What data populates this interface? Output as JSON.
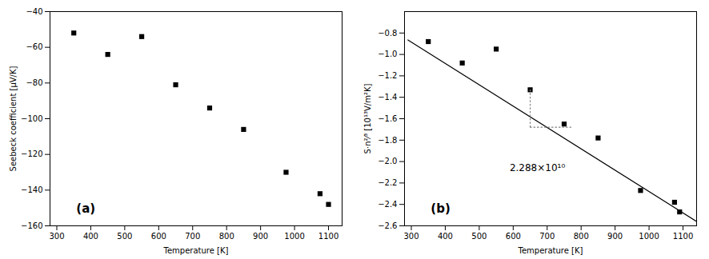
{
  "chart_data": [
    {
      "type": "scatter",
      "xlabel": "Temperature [K]",
      "ylabel": "Seebeck coefficient [μV/K]",
      "xlim": [
        280,
        1140
      ],
      "ylim": [
        -160,
        -40
      ],
      "xticks": [
        300,
        400,
        500,
        600,
        700,
        800,
        900,
        1000,
        1100
      ],
      "yticks": [
        -160,
        -140,
        -120,
        -100,
        -80,
        -60,
        -40
      ],
      "grid": false,
      "annotations": [
        "(a)"
      ],
      "series": [
        {
          "type": "scatter",
          "color": "black",
          "marker": "square",
          "x": [
            350,
            450,
            550,
            650,
            750,
            850,
            975,
            1075,
            1100
          ],
          "values": [
            -52,
            -64,
            -54,
            -81,
            -94,
            -106,
            -130,
            -142,
            -148
          ]
        }
      ]
    },
    {
      "type": "scatter",
      "xlabel": "Temperature [K]",
      "ylabel": "S·n²⁄³ [10¹³V/m²K]",
      "xlim": [
        280,
        1140
      ],
      "ylim": [
        -2.6,
        -0.6
      ],
      "xticks": [
        300,
        400,
        500,
        600,
        700,
        800,
        900,
        1000,
        1100
      ],
      "yticks": [
        {
          "value": -2.6,
          "label": "−2.6"
        },
        {
          "value": -2.4,
          "label": "−2.4"
        },
        {
          "value": -2.2,
          "label": "−2.2"
        },
        {
          "value": -2.0,
          "label": "−2.0"
        },
        {
          "value": -1.8,
          "label": "−1.8"
        },
        {
          "value": -1.6,
          "label": "−1.6"
        },
        {
          "value": -1.4,
          "label": "−1.4"
        },
        {
          "value": -1.2,
          "label": "−1.2"
        },
        {
          "value": -1.0,
          "label": "−1.0"
        },
        {
          "value": -0.8,
          "label": "−0.8"
        }
      ],
      "grid": false,
      "annotations": [
        "(b)",
        "2.288×10¹⁰"
      ],
      "series": [
        {
          "type": "scatter",
          "color": "black",
          "marker": "square",
          "x": [
            350,
            450,
            550,
            650,
            750,
            850,
            975,
            1075,
            1090
          ],
          "values": [
            -0.88,
            -1.08,
            -0.95,
            -1.33,
            -1.65,
            -1.78,
            -2.27,
            -2.38,
            -2.47
          ]
        },
        {
          "type": "line",
          "color": "black",
          "line_style": "solid",
          "x": [
            290,
            1140
          ],
          "values": [
            -0.86497,
            -2.55902
          ]
        },
        {
          "type": "line",
          "color": "gray",
          "line_style": "dotted",
          "x": [
            650,
            650
          ],
          "values": [
            -1.33,
            -1.68
          ]
        },
        {
          "type": "line",
          "color": "gray",
          "line_style": "dotted",
          "x": [
            650,
            770
          ],
          "values": [
            -1.68,
            -1.68
          ]
        }
      ]
    }
  ]
}
